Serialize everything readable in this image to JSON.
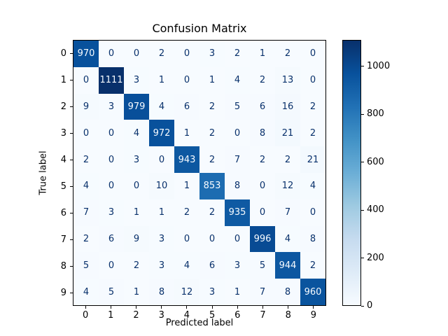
{
  "chart_data": {
    "type": "heatmap",
    "title": "Confusion Matrix",
    "xlabel": "Predicted label",
    "ylabel": "True label",
    "x_tick_labels": [
      "0",
      "1",
      "2",
      "3",
      "4",
      "5",
      "6",
      "7",
      "8",
      "9"
    ],
    "y_tick_labels": [
      "0",
      "1",
      "2",
      "3",
      "4",
      "5",
      "6",
      "7",
      "8",
      "9"
    ],
    "matrix": [
      [
        970,
        0,
        0,
        2,
        0,
        3,
        2,
        1,
        2,
        0
      ],
      [
        0,
        1111,
        3,
        1,
        0,
        1,
        4,
        2,
        13,
        0
      ],
      [
        9,
        3,
        979,
        4,
        6,
        2,
        5,
        6,
        16,
        2
      ],
      [
        0,
        0,
        4,
        972,
        1,
        2,
        0,
        8,
        21,
        2
      ],
      [
        2,
        0,
        3,
        0,
        943,
        2,
        7,
        2,
        2,
        21
      ],
      [
        4,
        0,
        0,
        10,
        1,
        853,
        8,
        0,
        12,
        4
      ],
      [
        7,
        3,
        1,
        1,
        2,
        2,
        935,
        0,
        7,
        0
      ],
      [
        2,
        6,
        9,
        3,
        0,
        0,
        0,
        996,
        4,
        8
      ],
      [
        5,
        0,
        2,
        3,
        4,
        6,
        3,
        5,
        944,
        2
      ],
      [
        4,
        5,
        1,
        8,
        12,
        3,
        1,
        7,
        8,
        960
      ]
    ],
    "vmin": 0,
    "vmax": 1111,
    "colormap": "Blues",
    "colormap_stops": [
      [
        0.0,
        "#f7fbff"
      ],
      [
        0.125,
        "#deebf7"
      ],
      [
        0.25,
        "#c6dbef"
      ],
      [
        0.375,
        "#9ecae1"
      ],
      [
        0.5,
        "#6baed6"
      ],
      [
        0.625,
        "#4292c6"
      ],
      [
        0.75,
        "#2171b5"
      ],
      [
        0.875,
        "#08519c"
      ],
      [
        1.0,
        "#08306b"
      ]
    ],
    "text_color_low": "#08306b",
    "text_color_high": "#f7fbff",
    "colorbar_ticks": [
      0,
      200,
      400,
      600,
      800,
      1000
    ],
    "grid": false,
    "legend": "colorbar-right"
  }
}
